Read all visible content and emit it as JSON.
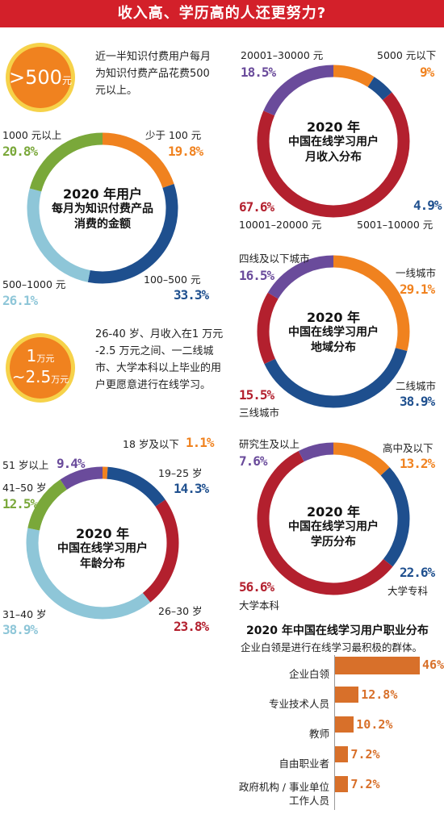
{
  "header": {
    "title": "收入高、学历高的人还更努力?"
  },
  "colors": {
    "orange": "#f0821f",
    "navy": "#1e4f8e",
    "red": "#b3202e",
    "lightblue": "#8ec6d8",
    "green": "#7aa83a",
    "purple": "#6a4b9b",
    "title_red": "#d3202a"
  },
  "badge1": {
    "value": ">500",
    "unit": "元",
    "text": "近一半知识付费用户每月为知识付费产品花费500 元以上。"
  },
  "badge2": {
    "value": "1",
    "unit": "万元",
    "value2": "~2.5",
    "unit2": "万元",
    "text": "26-40 岁、月收入在1 万元 -2.5 万元之间、一二线城市、大学本科以上毕业的用户更愿意进行在线学习。"
  },
  "bar_section": {
    "title": "2020 年中国在线学习用户职业分布",
    "subtitle": "企业白领是进行在线学习最积极的群体。"
  },
  "chart_data": [
    {
      "type": "pie",
      "title": [
        "2020 年用户",
        "每月为知识付费产品",
        "消费的金额"
      ],
      "categories": [
        "少于 100 元",
        "100–500 元",
        "500–1000 元",
        "1000 元以上"
      ],
      "values": [
        19.8,
        33.3,
        26.1,
        20.8
      ],
      "labels": [
        "19.8%",
        "33.3%",
        "26.1%",
        "20.8%"
      ],
      "colors": [
        "#f0821f",
        "#1e4f8e",
        "#8ec6d8",
        "#7aa83a"
      ]
    },
    {
      "type": "pie",
      "title": [
        "2020 年",
        "中国在线学习用户",
        "月收入分布"
      ],
      "categories": [
        "5000 元以下",
        "5001–10000 元",
        "10001–20000 元",
        "20001–30000 元"
      ],
      "values": [
        9,
        4.9,
        67.6,
        18.5
      ],
      "labels": [
        "9%",
        "4.9%",
        "67.6%",
        "18.5%"
      ],
      "colors": [
        "#f0821f",
        "#1e4f8e",
        "#b3202e",
        "#6a4b9b"
      ]
    },
    {
      "type": "pie",
      "title": [
        "2020 年",
        "中国在线学习用户",
        "地域分布"
      ],
      "categories": [
        "一线城市",
        "二线城市",
        "三线城市",
        "四线及以下城市"
      ],
      "values": [
        29.1,
        38.9,
        15.5,
        16.5
      ],
      "labels": [
        "29.1%",
        "38.9%",
        "15.5%",
        "16.5%"
      ],
      "colors": [
        "#f0821f",
        "#1e4f8e",
        "#b3202e",
        "#6a4b9b"
      ]
    },
    {
      "type": "pie",
      "title": [
        "2020 年",
        "中国在线学习用户",
        "年龄分布"
      ],
      "categories": [
        "18 岁及以下",
        "19–25 岁",
        "26–30 岁",
        "31–40 岁",
        "41–50 岁",
        "51 岁以上"
      ],
      "values": [
        1.1,
        14.3,
        23.8,
        38.9,
        12.5,
        9.4
      ],
      "labels": [
        "1.1%",
        "14.3%",
        "23.8%",
        "38.9%",
        "12.5%",
        "9.4%"
      ],
      "colors": [
        "#f0821f",
        "#1e4f8e",
        "#b3202e",
        "#8ec6d8",
        "#7aa83a",
        "#6a4b9b"
      ]
    },
    {
      "type": "pie",
      "title": [
        "2020 年",
        "中国在线学习用户",
        "学历分布"
      ],
      "categories": [
        "高中及以下",
        "大学专科",
        "大学本科",
        "研究生及以上"
      ],
      "values": [
        13.2,
        22.6,
        56.6,
        7.6
      ],
      "labels": [
        "13.2%",
        "22.6%",
        "56.6%",
        "7.6%"
      ],
      "colors": [
        "#f0821f",
        "#1e4f8e",
        "#b3202e",
        "#6a4b9b"
      ]
    },
    {
      "type": "bar",
      "orientation": "horizontal",
      "title": "2020 年中国在线学习用户职业分布",
      "categories": [
        "企业白领",
        "专业技术人员",
        "教师",
        "自由职业者",
        "政府机构 / 事业单位工作人员"
      ],
      "values": [
        46,
        12.8,
        10.2,
        7.2,
        7.2
      ],
      "labels": [
        "46%",
        "12.8%",
        "10.2%",
        "7.2%",
        "7.2%"
      ],
      "color": "#d8702a"
    }
  ]
}
